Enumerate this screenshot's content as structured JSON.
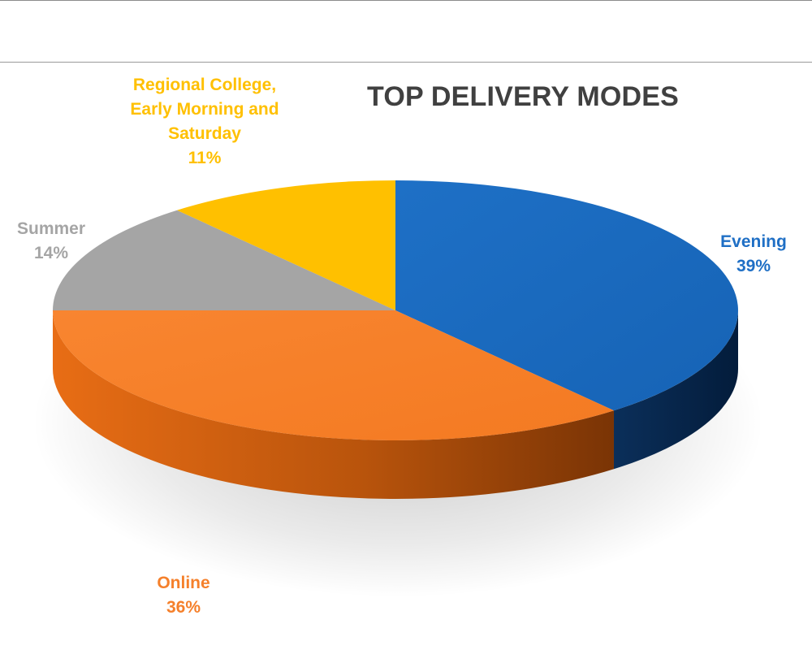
{
  "chart_data": {
    "type": "pie",
    "title": "TOP DELIVERY MODES",
    "slices": [
      {
        "label": "Evening",
        "value": 39,
        "value_label": "39%",
        "color": "#1f6fc5"
      },
      {
        "label": "Online",
        "value": 36,
        "value_label": "36%",
        "color": "#f5802b"
      },
      {
        "label": "Summer",
        "value": 14,
        "value_label": "14%",
        "color": "#a5a5a5"
      },
      {
        "label": "Regional College, Early Morning and Saturday",
        "label_lines": [
          "Regional College,",
          "Early Morning and",
          "Saturday"
        ],
        "value": 11,
        "value_label": "11%",
        "color": "#ffc000"
      }
    ]
  }
}
